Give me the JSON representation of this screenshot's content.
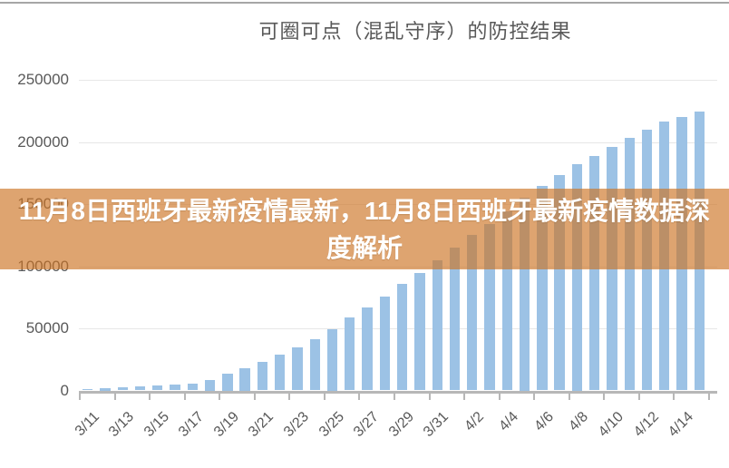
{
  "page": {
    "background": "#ffffff",
    "top_rule_color": "#a6a6a6"
  },
  "overlay": {
    "lines": [
      "11月8日西班牙最新疫情最新，11月8日西班牙最新疫情数据深",
      "度解析"
    ],
    "full_text": "11月8日西班牙最新疫情最新，11月8日西班牙最新疫情数据深度解析",
    "bg_color": "rgba(205,115,35,0.65)",
    "text_color": "#ffffff"
  },
  "chart_data": {
    "type": "bar",
    "title": "可圈可点（混乱守序）的防控结果",
    "x": [
      "3/11",
      "3/12",
      "3/13",
      "3/14",
      "3/15",
      "3/16",
      "3/17",
      "3/18",
      "3/19",
      "3/20",
      "3/21",
      "3/22",
      "3/23",
      "3/24",
      "3/25",
      "3/26",
      "3/27",
      "3/28",
      "3/29",
      "3/30",
      "3/31",
      "4/1",
      "4/2",
      "4/3",
      "4/4",
      "4/5",
      "4/6",
      "4/7",
      "4/8",
      "4/9",
      "4/10",
      "4/11",
      "4/12",
      "4/13",
      "4/14",
      "4/15"
    ],
    "values": [
      1000,
      1800,
      2600,
      3100,
      3700,
      4500,
      5400,
      8800,
      13900,
      18300,
      23200,
      28700,
      34400,
      41100,
      49300,
      58600,
      66600,
      75800,
      85600,
      94800,
      104600,
      114900,
      125100,
      134300,
      144100,
      155300,
      165100,
      173300,
      182300,
      189100,
      196400,
      203700,
      210300,
      216400,
      220100,
      224500
    ],
    "x_tick_labels": [
      "3/11",
      "3/13",
      "3/15",
      "3/17",
      "3/19",
      "3/21",
      "3/23",
      "3/25",
      "3/27",
      "3/29",
      "3/31",
      "4/2",
      "4/4",
      "4/6",
      "4/8",
      "4/10",
      "4/12",
      "4/14"
    ],
    "y_ticks": [
      0,
      50000,
      100000,
      150000,
      200000,
      250000
    ],
    "ylim": [
      0,
      250000
    ],
    "xlabel": "",
    "ylabel": "",
    "grid": true,
    "legend": false,
    "bar_color": "#9CC2E5",
    "axis_color": "#b7b7b7",
    "gridline_color": "#e7e7e7",
    "label_color": "#595959",
    "title_color": "#595959"
  }
}
